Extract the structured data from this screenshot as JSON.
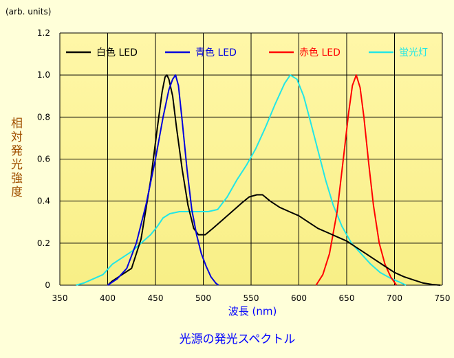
{
  "chart_data": {
    "type": "line",
    "title": "光源の発光スペクトル",
    "xlabel": "波長 (nm)",
    "ylabel": "相対発光強度",
    "yunit": "(arb. units)",
    "xlim": [
      350,
      750
    ],
    "ylim": [
      0,
      1.2
    ],
    "x_ticks": [
      "350",
      "400",
      "450",
      "500",
      "550",
      "600",
      "650",
      "700",
      "750"
    ],
    "y_ticks": [
      "0",
      "0.2",
      "0.4",
      "0.6",
      "0.8",
      "1.0",
      "1.2"
    ],
    "grid": true,
    "legend_position": "top",
    "series": [
      {
        "name": "白色 LED",
        "color": "#000000",
        "points": [
          [
            400,
            0
          ],
          [
            405,
            0.02
          ],
          [
            415,
            0.05
          ],
          [
            425,
            0.08
          ],
          [
            435,
            0.22
          ],
          [
            445,
            0.5
          ],
          [
            452,
            0.75
          ],
          [
            457,
            0.92
          ],
          [
            460,
            0.99
          ],
          [
            462,
            1.0
          ],
          [
            464,
            0.98
          ],
          [
            468,
            0.9
          ],
          [
            472,
            0.75
          ],
          [
            478,
            0.55
          ],
          [
            484,
            0.38
          ],
          [
            490,
            0.27
          ],
          [
            495,
            0.24
          ],
          [
            502,
            0.24
          ],
          [
            510,
            0.27
          ],
          [
            520,
            0.31
          ],
          [
            530,
            0.35
          ],
          [
            540,
            0.39
          ],
          [
            548,
            0.42
          ],
          [
            556,
            0.43
          ],
          [
            562,
            0.43
          ],
          [
            570,
            0.4
          ],
          [
            580,
            0.37
          ],
          [
            590,
            0.35
          ],
          [
            600,
            0.33
          ],
          [
            610,
            0.3
          ],
          [
            620,
            0.27
          ],
          [
            630,
            0.25
          ],
          [
            640,
            0.23
          ],
          [
            650,
            0.21
          ],
          [
            660,
            0.18
          ],
          [
            670,
            0.15
          ],
          [
            680,
            0.12
          ],
          [
            690,
            0.09
          ],
          [
            700,
            0.06
          ],
          [
            710,
            0.04
          ],
          [
            720,
            0.025
          ],
          [
            730,
            0.01
          ],
          [
            740,
            0.003
          ],
          [
            748,
            0
          ]
        ]
      },
      {
        "name": "青色 LED",
        "color": "#0000dd",
        "points": [
          [
            400,
            0
          ],
          [
            410,
            0.03
          ],
          [
            420,
            0.08
          ],
          [
            430,
            0.2
          ],
          [
            440,
            0.38
          ],
          [
            450,
            0.6
          ],
          [
            458,
            0.8
          ],
          [
            464,
            0.93
          ],
          [
            468,
            0.98
          ],
          [
            471,
            1.0
          ],
          [
            474,
            0.95
          ],
          [
            478,
            0.78
          ],
          [
            483,
            0.55
          ],
          [
            488,
            0.36
          ],
          [
            493,
            0.24
          ],
          [
            498,
            0.15
          ],
          [
            503,
            0.09
          ],
          [
            508,
            0.04
          ],
          [
            513,
            0.01
          ],
          [
            516,
            0
          ]
        ]
      },
      {
        "name": "赤色 LED",
        "color": "#ff0000",
        "points": [
          [
            618,
            0
          ],
          [
            625,
            0.05
          ],
          [
            632,
            0.15
          ],
          [
            640,
            0.35
          ],
          [
            647,
            0.62
          ],
          [
            652,
            0.82
          ],
          [
            656,
            0.95
          ],
          [
            660,
            1.0
          ],
          [
            664,
            0.94
          ],
          [
            668,
            0.8
          ],
          [
            673,
            0.58
          ],
          [
            678,
            0.38
          ],
          [
            684,
            0.2
          ],
          [
            690,
            0.1
          ],
          [
            696,
            0.04
          ],
          [
            702,
            0
          ]
        ]
      },
      {
        "name": "蛍光灯",
        "color": "#22e6e6",
        "points": [
          [
            367,
            0
          ],
          [
            375,
            0.01
          ],
          [
            385,
            0.03
          ],
          [
            395,
            0.05
          ],
          [
            405,
            0.1
          ],
          [
            415,
            0.13
          ],
          [
            425,
            0.16
          ],
          [
            435,
            0.2
          ],
          [
            445,
            0.24
          ],
          [
            452,
            0.28
          ],
          [
            458,
            0.32
          ],
          [
            465,
            0.34
          ],
          [
            475,
            0.35
          ],
          [
            485,
            0.35
          ],
          [
            495,
            0.35
          ],
          [
            505,
            0.35
          ],
          [
            515,
            0.36
          ],
          [
            525,
            0.42
          ],
          [
            535,
            0.5
          ],
          [
            545,
            0.57
          ],
          [
            555,
            0.65
          ],
          [
            565,
            0.75
          ],
          [
            575,
            0.86
          ],
          [
            585,
            0.96
          ],
          [
            591,
            1.0
          ],
          [
            598,
            0.98
          ],
          [
            605,
            0.9
          ],
          [
            612,
            0.78
          ],
          [
            620,
            0.64
          ],
          [
            628,
            0.5
          ],
          [
            636,
            0.38
          ],
          [
            645,
            0.28
          ],
          [
            655,
            0.2
          ],
          [
            665,
            0.15
          ],
          [
            675,
            0.1
          ],
          [
            685,
            0.06
          ],
          [
            695,
            0.035
          ],
          [
            705,
            0.015
          ],
          [
            712,
            0
          ]
        ]
      }
    ]
  }
}
